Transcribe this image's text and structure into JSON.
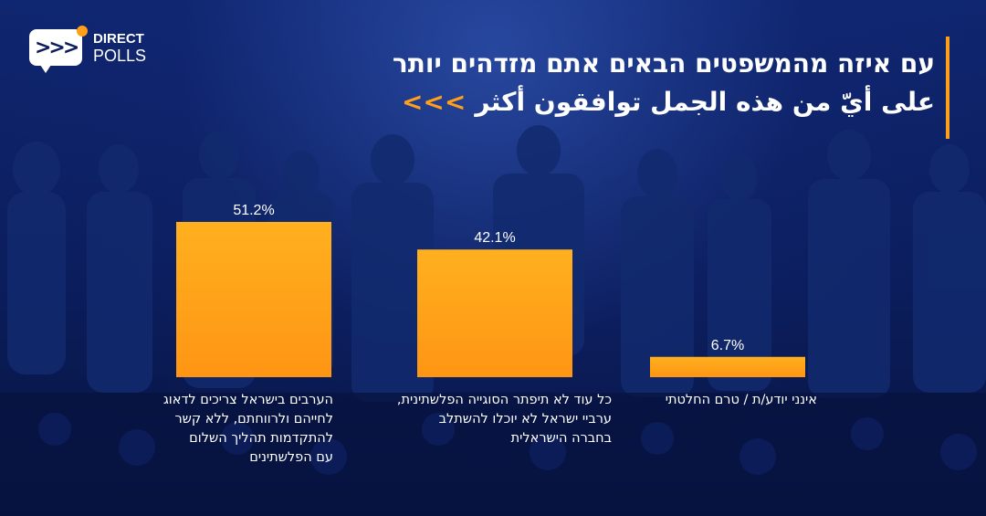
{
  "brand": {
    "line1": "DIRECT",
    "line2": "POLLS",
    "accent": "#ff9f1a"
  },
  "header": {
    "title_hebrew": "עם איזה מהמשפטים הבאים אתם מזדהים יותר",
    "title_arabic": "على أيّ من هذه الجمل توافقون أكثر",
    "arrows": "<<<"
  },
  "chart_data": {
    "type": "bar",
    "bar_color": "#ffa21a",
    "categories": [
      [
        "הערבים בישראל צריכים לדאוג",
        "לחייהם ולרווחתם, ללא קשר",
        "להתקדמות תהליך השלום",
        "עם הפלשתינים"
      ],
      [
        "כל עוד לא תיפתר הסוגייה הפלשתינית,",
        "ערביי ישראל לא יוכלו להשתלב",
        "בחברה הישראלית"
      ],
      [
        "אינני יודע/ת / טרם החלטתי"
      ]
    ],
    "values": [
      51.2,
      42.1,
      6.7
    ],
    "value_labels": [
      "51.2%",
      "42.1%",
      "6.7%"
    ],
    "ylim": [
      0,
      55
    ],
    "grid": false,
    "legend": "none"
  }
}
